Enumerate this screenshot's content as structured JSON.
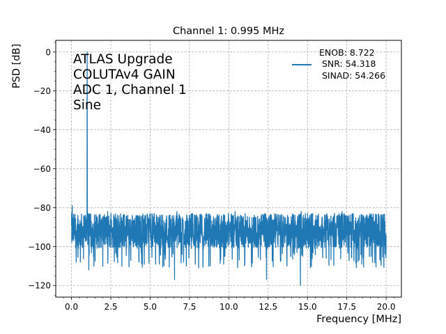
{
  "chart_data": {
    "type": "line",
    "title": "Channel 1: 0.995 MHz",
    "xlabel": "Frequency [MHz]",
    "ylabel": "PSD [dB]",
    "xlim": [
      -1.0,
      20.97
    ],
    "ylim": [
      -126,
      6
    ],
    "xticks": [
      0.0,
      2.5,
      5.0,
      7.5,
      10.0,
      12.5,
      15.0,
      17.5,
      20.0
    ],
    "xtick_labels": [
      "0.0",
      "2.5",
      "5.0",
      "7.5",
      "10.0",
      "12.5",
      "15.0",
      "17.5",
      "20.0"
    ],
    "yticks": [
      0,
      -20,
      -40,
      -60,
      -80,
      -100,
      -120
    ],
    "ytick_labels": [
      "0",
      "−20",
      "−40",
      "−60",
      "−80",
      "−100",
      "−120"
    ],
    "grid": true,
    "grid_style": "dashed",
    "legend_position": "top-right",
    "legend_lines": [
      "ENOB: 8.722",
      " SNR: 54.318",
      " SINAD: 54.266"
    ],
    "annotation_lines": [
      "ATLAS Upgrade",
      "COLUTAv4 GAIN",
      "ADC 1, Channel 1",
      "Sine"
    ],
    "series": [
      {
        "color": "#1f77b4",
        "fundamental_frequency_mhz": 0.995,
        "fundamental_peak_db": 0,
        "noise_floor_db": -92,
        "noise_band_db": [
          -103,
          -83
        ],
        "deepest_dips": [
          [
            0.3,
            -108
          ],
          [
            1.1,
            -112
          ],
          [
            6.55,
            -117
          ],
          [
            7.3,
            -110
          ],
          [
            12.4,
            -117
          ],
          [
            14.55,
            -120
          ],
          [
            18.45,
            -109
          ],
          [
            19.6,
            -107
          ]
        ],
        "highest_spurs": [
          [
            0.05,
            -79
          ],
          [
            0.4,
            -84
          ],
          [
            1.0,
            -77
          ],
          [
            2.3,
            -82
          ],
          [
            6.7,
            -82
          ],
          [
            10.4,
            -82
          ],
          [
            14.6,
            -82
          ],
          [
            17.2,
            -82
          ]
        ]
      }
    ]
  },
  "colors": {
    "line": "#1f77b4",
    "grid": "#b0b0b0",
    "axes": "#000000"
  }
}
